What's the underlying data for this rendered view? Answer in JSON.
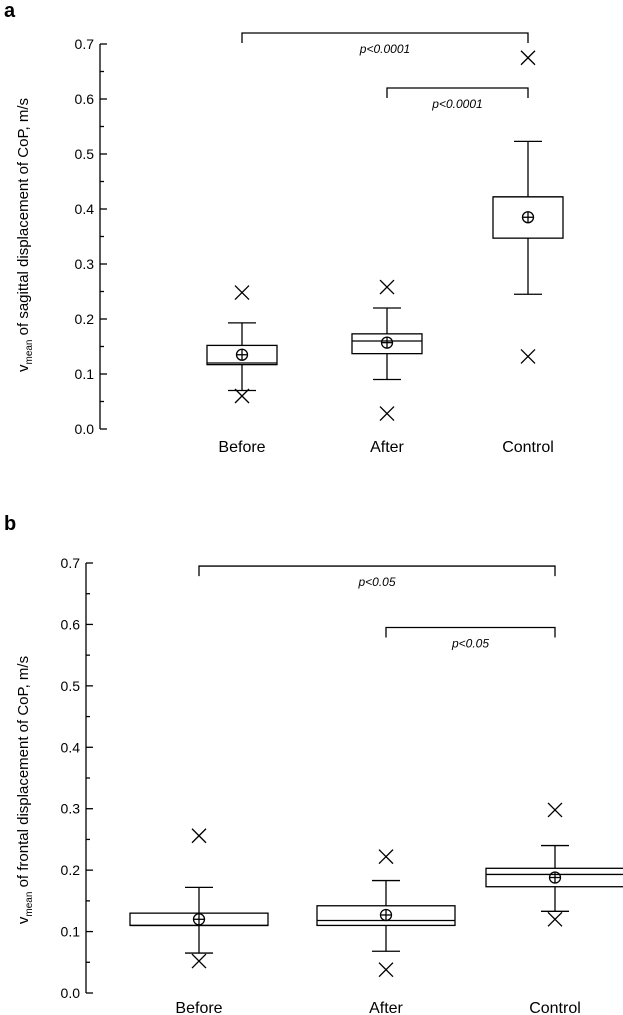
{
  "chart_data": [
    {
      "type": "box",
      "panel_label": "a",
      "ylabel_main": "v",
      "ylabel_sub": "mean",
      "ylabel_rest": " of sagittal displacement of CoP, m/s",
      "ylim": [
        0,
        0.7
      ],
      "yticks": [
        "0.0",
        "0.1",
        "0.2",
        "0.3",
        "0.4",
        "0.5",
        "0.6",
        "0.7"
      ],
      "categories": [
        "Before",
        "After",
        "Control"
      ],
      "boxes": [
        {
          "q1": 0.117,
          "median": 0.12,
          "q3": 0.152,
          "mean": 0.135,
          "whisker_low": 0.07,
          "whisker_high": 0.193,
          "min": 0.06,
          "max": 0.248
        },
        {
          "q1": 0.137,
          "median": 0.16,
          "q3": 0.173,
          "mean": 0.157,
          "whisker_low": 0.09,
          "whisker_high": 0.22,
          "min": 0.028,
          "max": 0.258
        },
        {
          "q1": 0.347,
          "median": 0.422,
          "q3": 0.422,
          "mean": 0.385,
          "whisker_low": 0.245,
          "whisker_high": 0.523,
          "min": 0.132,
          "max": 0.675
        }
      ],
      "comparisons": [
        {
          "from": 0,
          "to": 2,
          "level": 0.72,
          "label": "p<0.0001"
        },
        {
          "from": 1,
          "to": 2,
          "level": 0.62,
          "label": "p<0.0001"
        }
      ]
    },
    {
      "type": "box",
      "panel_label": "b",
      "ylabel_main": "v",
      "ylabel_sub": "mean",
      "ylabel_rest": " of frontal displacement of CoP, m/s",
      "ylim": [
        0,
        0.7
      ],
      "yticks": [
        "0.0",
        "0.1",
        "0.2",
        "0.3",
        "0.4",
        "0.5",
        "0.6",
        "0.7"
      ],
      "categories": [
        "Before",
        "After",
        "Control"
      ],
      "boxes": [
        {
          "q1": 0.11,
          "median": 0.11,
          "q3": 0.13,
          "mean": 0.12,
          "whisker_low": 0.065,
          "whisker_high": 0.172,
          "min": 0.052,
          "max": 0.256
        },
        {
          "q1": 0.11,
          "median": 0.118,
          "q3": 0.142,
          "mean": 0.127,
          "whisker_low": 0.068,
          "whisker_high": 0.183,
          "min": 0.038,
          "max": 0.222
        },
        {
          "q1": 0.173,
          "median": 0.193,
          "q3": 0.203,
          "mean": 0.188,
          "whisker_low": 0.133,
          "whisker_high": 0.24,
          "min": 0.12,
          "max": 0.298
        }
      ],
      "comparisons": [
        {
          "from": 0,
          "to": 2,
          "level": 0.695,
          "label": "p<0.05"
        },
        {
          "from": 1,
          "to": 2,
          "level": 0.595,
          "label": "p<0.05"
        }
      ]
    }
  ]
}
